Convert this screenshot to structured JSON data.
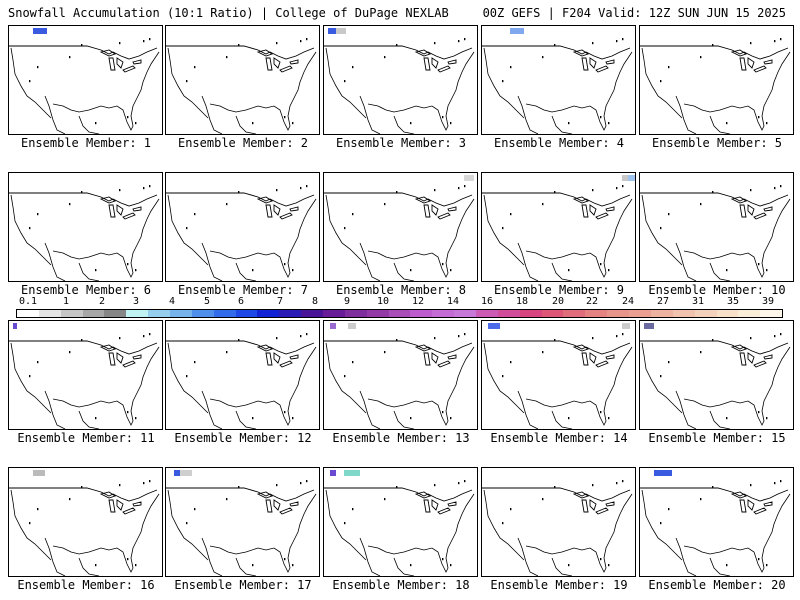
{
  "header": {
    "title_left": "Snowfall Accumulation (10:1 Ratio) | College of DuPage NEXLAB",
    "title_right": "00Z GEFS | F204 Valid: 12Z SUN JUN 15 2025"
  },
  "colorbar": {
    "labels": [
      "0.1",
      "1",
      "2",
      "3",
      "4",
      "5",
      "6",
      "7",
      "8",
      "9",
      "10",
      "12",
      "14",
      "16",
      "18",
      "20",
      "22",
      "24",
      "27",
      "31",
      "35",
      "39"
    ],
    "colors": [
      "#ffffff",
      "#e4e4e4",
      "#c6c6c6",
      "#a6a6a6",
      "#868686",
      "#c2f3f3",
      "#96cfee",
      "#77b4ec",
      "#4f8feb",
      "#336cea",
      "#1f49e6",
      "#1123d4",
      "#2a1bb6",
      "#4a1499",
      "#681c97",
      "#7f2e9e",
      "#943aa6",
      "#a94db9",
      "#bd5ccd",
      "#c46bd6",
      "#c878d8",
      "#cc5bb6",
      "#d14d9b",
      "#d7447f",
      "#dd5678",
      "#e06d7c",
      "#e48382",
      "#e7948b",
      "#ea9f91",
      "#eeb3a0",
      "#f1c3ae",
      "#f4d1bb",
      "#f8e0c9",
      "#fbeed9",
      "#fff7ea"
    ]
  },
  "members": [
    {
      "label": "Ensemble Member: 1"
    },
    {
      "label": "Ensemble Member: 2"
    },
    {
      "label": "Ensemble Member: 3"
    },
    {
      "label": "Ensemble Member: 4"
    },
    {
      "label": "Ensemble Member: 5"
    },
    {
      "label": "Ensemble Member: 6"
    },
    {
      "label": "Ensemble Member: 7"
    },
    {
      "label": "Ensemble Member: 8"
    },
    {
      "label": "Ensemble Member: 9"
    },
    {
      "label": "Ensemble Member: 10"
    },
    {
      "label": "Ensemble Member: 11"
    },
    {
      "label": "Ensemble Member: 12"
    },
    {
      "label": "Ensemble Member: 13"
    },
    {
      "label": "Ensemble Member: 14"
    },
    {
      "label": "Ensemble Member: 15"
    },
    {
      "label": "Ensemble Member: 16"
    },
    {
      "label": "Ensemble Member: 17"
    },
    {
      "label": "Ensemble Member: 18"
    },
    {
      "label": "Ensemble Member: 19"
    },
    {
      "label": "Ensemble Member: 20"
    }
  ]
}
